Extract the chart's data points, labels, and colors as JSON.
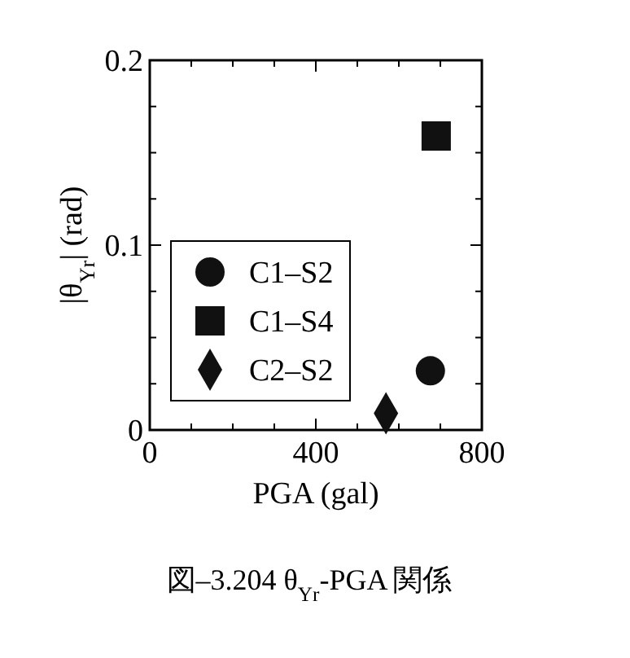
{
  "chart_data": {
    "type": "scatter",
    "xlabel": "PGA (gal)",
    "ylabel": "|θ$_{Yr}$| (rad)",
    "annotations": [
      "図–3.204 θ$_{Yr}$-PGA 関係"
    ],
    "xlim": [
      0,
      800
    ],
    "xticks": [
      0,
      {
        "value": 100,
        "label": null
      },
      {
        "value": 200,
        "label": null
      },
      {
        "value": 300,
        "label": null
      },
      400,
      {
        "value": 500,
        "label": null
      },
      {
        "value": 600,
        "label": null
      },
      {
        "value": 700,
        "label": null
      },
      800
    ],
    "ylim": [
      0,
      0.2
    ],
    "yticks": [
      0,
      {
        "value": 0.025,
        "label": null
      },
      {
        "value": 0.05,
        "label": null
      },
      {
        "value": 0.075,
        "label": null
      },
      0.1,
      {
        "value": 0.125,
        "label": null
      },
      {
        "value": 0.15,
        "label": null
      },
      {
        "value": 0.175,
        "label": null
      },
      0.2
    ],
    "legend": "left",
    "grid": false,
    "series": [
      {
        "name": "C1–S2",
        "color": "#111111",
        "marker": "circle",
        "x": [
          676
        ],
        "values": [
          0.032
        ]
      },
      {
        "name": "C1–S4",
        "color": "#111111",
        "marker": "square",
        "x": [
          690
        ],
        "values": [
          0.159
        ]
      },
      {
        "name": "C2–S2",
        "color": "#111111",
        "marker": "diamond",
        "x": [
          569
        ],
        "values": [
          0.009
        ]
      }
    ]
  }
}
